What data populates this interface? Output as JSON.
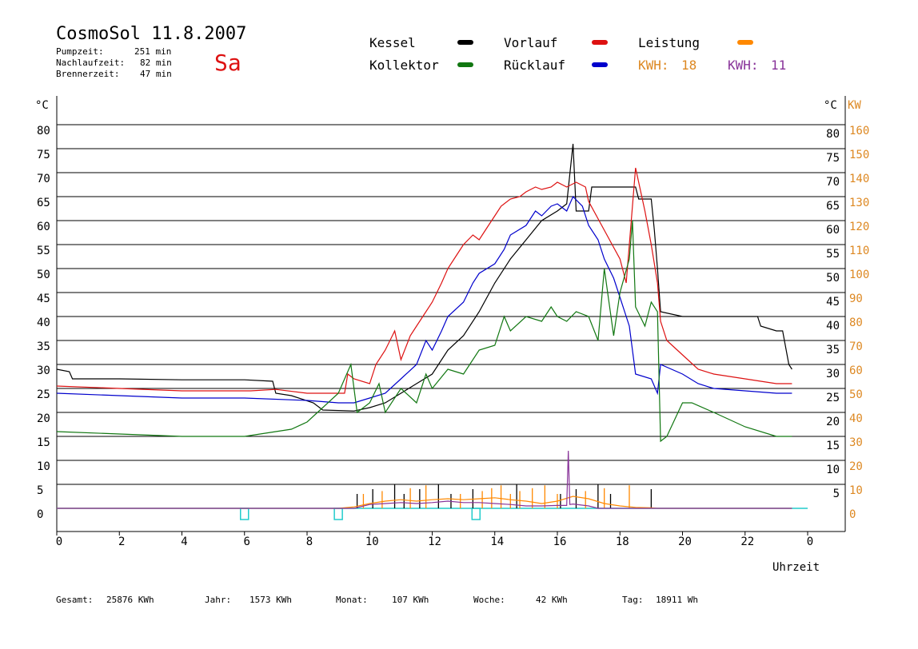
{
  "header": {
    "title": "CosmoSol 11.8.2007",
    "day": "Sa",
    "stats": [
      {
        "label": "Pumpzeit:",
        "value": "251 min"
      },
      {
        "label": "Nachlaufzeit:",
        "value": "82 min"
      },
      {
        "label": "Brennerzeit:",
        "value": "47 min"
      }
    ]
  },
  "legend": {
    "kessel": {
      "label": "Kessel",
      "color": "#000000"
    },
    "vorlauf": {
      "label": "Vorlauf",
      "color": "#dd1111"
    },
    "leistung": {
      "label": "Leistung",
      "color": "#ff8800"
    },
    "kollektor": {
      "label": "Kollektor",
      "color": "#117711"
    },
    "ruecklauf": {
      "label": "Rücklauf",
      "color": "#0000cc"
    },
    "kwh1": {
      "label": "KWH:",
      "value": "18",
      "color": "#dd8822"
    },
    "kwh2": {
      "label": "KWH:",
      "value": "11",
      "color": "#883399"
    }
  },
  "footer": [
    {
      "label": "Gesamt:",
      "value": "25876 KWh"
    },
    {
      "label": "Jahr:",
      "value": "1573 KWh"
    },
    {
      "label": "Monat:",
      "value": "107 KWh"
    },
    {
      "label": "Woche:",
      "value": "42 KWh"
    },
    {
      "label": "Tag:",
      "value": "18911 Wh"
    }
  ],
  "chart_data": {
    "type": "line",
    "xlabel": "Uhrzeit",
    "ylabel_left": "°C",
    "ylabel_right_c": "°C",
    "ylabel_right_kw": "KW",
    "xlim": [
      0,
      24
    ],
    "ylim": [
      0,
      80
    ],
    "x_ticks": [
      "0",
      "2",
      "4",
      "6",
      "8",
      "10",
      "12",
      "14",
      "16",
      "18",
      "20",
      "22",
      "0"
    ],
    "y_ticks_left": [
      "0",
      "5",
      "10",
      "15",
      "20",
      "25",
      "30",
      "35",
      "40",
      "45",
      "50",
      "55",
      "60",
      "65",
      "70",
      "75",
      "80"
    ],
    "y_ticks_right_c": [
      "5",
      "10",
      "15",
      "20",
      "25",
      "30",
      "35",
      "40",
      "45",
      "50",
      "55",
      "60",
      "65",
      "70",
      "75",
      "80"
    ],
    "y_ticks_right_kw": [
      "0",
      "10",
      "20",
      "30",
      "40",
      "50",
      "60",
      "70",
      "80",
      "90",
      "100",
      "110",
      "120",
      "130",
      "140",
      "150",
      "160"
    ],
    "grid": true,
    "series": [
      {
        "name": "Kessel",
        "color": "#000000",
        "points": [
          [
            0,
            29
          ],
          [
            0.4,
            28.5
          ],
          [
            0.5,
            27
          ],
          [
            2,
            27
          ],
          [
            4,
            26.8
          ],
          [
            6,
            26.8
          ],
          [
            6.9,
            26.5
          ],
          [
            7.0,
            24
          ],
          [
            7.5,
            23.5
          ],
          [
            8.2,
            22
          ],
          [
            8.5,
            20.5
          ],
          [
            9.5,
            20.3
          ],
          [
            10,
            21
          ],
          [
            10.5,
            22
          ],
          [
            11,
            24
          ],
          [
            11.5,
            26
          ],
          [
            12,
            28
          ],
          [
            12.5,
            33
          ],
          [
            13,
            36
          ],
          [
            13.5,
            41
          ],
          [
            14,
            47
          ],
          [
            14.5,
            52
          ],
          [
            15,
            56
          ],
          [
            15.5,
            60
          ],
          [
            16,
            62
          ],
          [
            16.3,
            63.5
          ],
          [
            16.5,
            76
          ],
          [
            16.6,
            62
          ],
          [
            17,
            62
          ],
          [
            17.1,
            67
          ],
          [
            18,
            67
          ],
          [
            18.5,
            67
          ],
          [
            18.6,
            64.5
          ],
          [
            19,
            64.5
          ],
          [
            19.1,
            58
          ],
          [
            19.2,
            50
          ],
          [
            19.3,
            41
          ],
          [
            20,
            40
          ],
          [
            21,
            40
          ],
          [
            22,
            40
          ],
          [
            22.4,
            40
          ],
          [
            22.5,
            38
          ],
          [
            23.0,
            37
          ],
          [
            23.2,
            37
          ],
          [
            23.4,
            30
          ],
          [
            23.5,
            29
          ]
        ]
      },
      {
        "name": "Vorlauf",
        "color": "#dd1111",
        "points": [
          [
            0,
            25.5
          ],
          [
            2,
            25
          ],
          [
            4,
            24.5
          ],
          [
            6,
            24.5
          ],
          [
            6.2,
            24.5
          ],
          [
            7,
            24.8
          ],
          [
            8,
            24
          ],
          [
            9,
            24
          ],
          [
            9.2,
            24
          ],
          [
            9.3,
            28
          ],
          [
            9.5,
            27
          ],
          [
            10,
            26
          ],
          [
            10.2,
            30
          ],
          [
            10.5,
            33
          ],
          [
            10.8,
            37
          ],
          [
            11,
            31
          ],
          [
            11.3,
            36
          ],
          [
            11.5,
            38
          ],
          [
            12,
            43
          ],
          [
            12.3,
            47
          ],
          [
            12.5,
            50
          ],
          [
            12.8,
            53
          ],
          [
            13,
            55
          ],
          [
            13.3,
            57
          ],
          [
            13.5,
            56
          ],
          [
            13.8,
            59
          ],
          [
            14,
            61
          ],
          [
            14.2,
            63
          ],
          [
            14.5,
            64.5
          ],
          [
            14.8,
            65
          ],
          [
            15,
            66
          ],
          [
            15.3,
            67
          ],
          [
            15.5,
            66.5
          ],
          [
            15.8,
            67
          ],
          [
            16,
            68
          ],
          [
            16.3,
            67
          ],
          [
            16.6,
            68
          ],
          [
            16.9,
            67
          ],
          [
            17,
            64
          ],
          [
            17.5,
            58
          ],
          [
            18,
            52
          ],
          [
            18.2,
            47
          ],
          [
            18.5,
            71
          ],
          [
            18.8,
            62
          ],
          [
            19,
            55
          ],
          [
            19.2,
            47
          ],
          [
            19.3,
            39
          ],
          [
            19.5,
            35
          ],
          [
            20,
            32
          ],
          [
            20.5,
            29
          ],
          [
            21,
            28
          ],
          [
            22,
            27
          ],
          [
            23,
            26
          ],
          [
            23.5,
            26
          ]
        ]
      },
      {
        "name": "Rücklauf",
        "color": "#0000cc",
        "points": [
          [
            0,
            24
          ],
          [
            2,
            23.5
          ],
          [
            4,
            23
          ],
          [
            6,
            23
          ],
          [
            8,
            22.5
          ],
          [
            9,
            22
          ],
          [
            9.5,
            22
          ],
          [
            10,
            23
          ],
          [
            10.5,
            24
          ],
          [
            11,
            27
          ],
          [
            11.5,
            30
          ],
          [
            11.8,
            35
          ],
          [
            12,
            33
          ],
          [
            12.3,
            37
          ],
          [
            12.5,
            40
          ],
          [
            13,
            43
          ],
          [
            13.3,
            47
          ],
          [
            13.5,
            49
          ],
          [
            14,
            51
          ],
          [
            14.3,
            54
          ],
          [
            14.5,
            57
          ],
          [
            15,
            59
          ],
          [
            15.3,
            62
          ],
          [
            15.5,
            61
          ],
          [
            15.8,
            63
          ],
          [
            16,
            63.5
          ],
          [
            16.3,
            62
          ],
          [
            16.5,
            65
          ],
          [
            16.8,
            63
          ],
          [
            17,
            59
          ],
          [
            17.3,
            56
          ],
          [
            17.5,
            52
          ],
          [
            17.8,
            48
          ],
          [
            18,
            44
          ],
          [
            18.3,
            38
          ],
          [
            18.5,
            28
          ],
          [
            19,
            27
          ],
          [
            19.2,
            24
          ],
          [
            19.3,
            30
          ],
          [
            20,
            28
          ],
          [
            20.5,
            26
          ],
          [
            21,
            25
          ],
          [
            22,
            24.5
          ],
          [
            23,
            24
          ],
          [
            23.5,
            24
          ]
        ]
      },
      {
        "name": "Kollektor",
        "color": "#117711",
        "points": [
          [
            0,
            16
          ],
          [
            2,
            15.5
          ],
          [
            4,
            15
          ],
          [
            5,
            15
          ],
          [
            6,
            15
          ],
          [
            7,
            16
          ],
          [
            7.5,
            16.5
          ],
          [
            8,
            18
          ],
          [
            8.5,
            21
          ],
          [
            9,
            24
          ],
          [
            9.4,
            30
          ],
          [
            9.6,
            20
          ],
          [
            10,
            22
          ],
          [
            10.3,
            26
          ],
          [
            10.5,
            20
          ],
          [
            11,
            25
          ],
          [
            11.5,
            22
          ],
          [
            11.8,
            28
          ],
          [
            12,
            25
          ],
          [
            12.5,
            29
          ],
          [
            13,
            28
          ],
          [
            13.5,
            33
          ],
          [
            14,
            34
          ],
          [
            14.3,
            40
          ],
          [
            14.5,
            37
          ],
          [
            15,
            40
          ],
          [
            15.5,
            39
          ],
          [
            15.8,
            42
          ],
          [
            16,
            40
          ],
          [
            16.3,
            39
          ],
          [
            16.6,
            41
          ],
          [
            17,
            40
          ],
          [
            17.3,
            35
          ],
          [
            17.5,
            50
          ],
          [
            17.8,
            36
          ],
          [
            18,
            45
          ],
          [
            18.3,
            52
          ],
          [
            18.4,
            60
          ],
          [
            18.5,
            42
          ],
          [
            18.8,
            38
          ],
          [
            19,
            43
          ],
          [
            19.2,
            41
          ],
          [
            19.3,
            14
          ],
          [
            19.5,
            15
          ],
          [
            20,
            22
          ],
          [
            20.3,
            22
          ],
          [
            21,
            20
          ],
          [
            22,
            17
          ],
          [
            23,
            15
          ],
          [
            23.5,
            15
          ]
        ]
      },
      {
        "name": "Leistung",
        "color": "#ff8800",
        "points": [
          [
            0,
            0
          ],
          [
            9,
            0
          ],
          [
            9.5,
            0.3
          ],
          [
            10,
            1
          ],
          [
            10.5,
            1.5
          ],
          [
            11,
            1.8
          ],
          [
            11.5,
            1.5
          ],
          [
            12,
            1.8
          ],
          [
            12.5,
            2
          ],
          [
            13,
            1.8
          ],
          [
            13.5,
            2
          ],
          [
            14,
            2.2
          ],
          [
            14.5,
            1.8
          ],
          [
            15,
            1.5
          ],
          [
            15.5,
            1
          ],
          [
            16,
            1.5
          ],
          [
            16.5,
            2.5
          ],
          [
            17,
            2
          ],
          [
            17.5,
            1
          ],
          [
            18,
            0.5
          ],
          [
            18.5,
            0.2
          ],
          [
            19,
            0.1
          ],
          [
            19.2,
            0
          ],
          [
            23.5,
            0
          ]
        ]
      },
      {
        "name": "Kollektor-Leistung",
        "color": "#883399",
        "points": [
          [
            0,
            0
          ],
          [
            9.5,
            0
          ],
          [
            10,
            0.8
          ],
          [
            10.5,
            1.0
          ],
          [
            11,
            1.2
          ],
          [
            11.5,
            1.0
          ],
          [
            12,
            1.2
          ],
          [
            12.5,
            1.5
          ],
          [
            13,
            1.2
          ],
          [
            13.5,
            1.2
          ],
          [
            14,
            1.0
          ],
          [
            14.5,
            0.8
          ],
          [
            15,
            0.5
          ],
          [
            15.5,
            0.5
          ],
          [
            16,
            0.6
          ],
          [
            16.3,
            0.6
          ],
          [
            16.35,
            12
          ],
          [
            16.4,
            0.8
          ],
          [
            16.5,
            0.9
          ],
          [
            17,
            0.5
          ],
          [
            17.3,
            0
          ],
          [
            23.5,
            0
          ]
        ]
      }
    ],
    "spikes": {
      "black": [
        9.6,
        10.1,
        10.8,
        11.1,
        11.6,
        12.2,
        12.6,
        13.3,
        14.7,
        16.1,
        16.6,
        17.3,
        17.7,
        19.0
      ],
      "orange": [
        9.8,
        10.4,
        11.3,
        11.8,
        12.9,
        13.6,
        13.9,
        14.2,
        14.5,
        14.8,
        15.2,
        15.6,
        16.0,
        16.9,
        17.5,
        18.3
      ]
    },
    "markers": [
      6,
      9,
      13.4
    ]
  }
}
